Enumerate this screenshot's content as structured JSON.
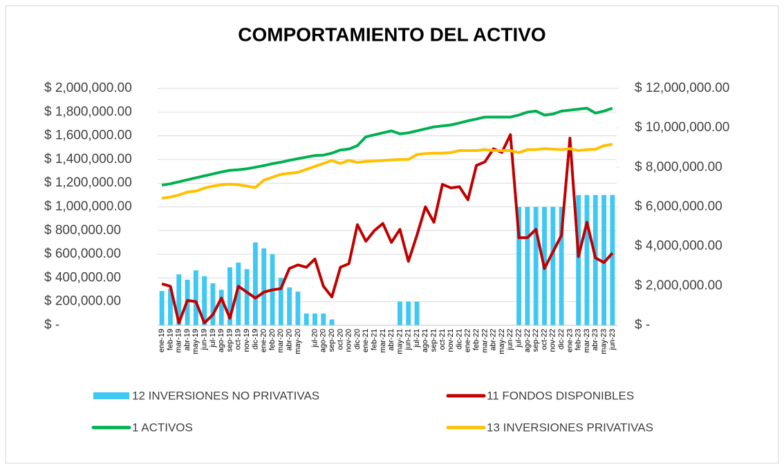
{
  "chart_data": {
    "type": "combo",
    "title": "COMPORTAMIENTO DEL ACTIVO",
    "categories": [
      "ene-19",
      "feb-19",
      "mar-19",
      "abr-19",
      "may-19",
      "jun-19",
      "jul-19",
      "ago-19",
      "sep-19",
      "oct-19",
      "nov-19",
      "dic-19",
      "ene-20",
      "feb-20",
      "mar-20",
      "abr-20",
      "may-20",
      null,
      "jul-20",
      "ago-20",
      "sep-20",
      "oct-20",
      "nov-20",
      "dic-20",
      "ene-21",
      "feb-21",
      "mar-21",
      "abr-21",
      "may-21",
      "jun-21",
      "jul-21",
      "ago-21",
      "sep-21",
      "oct-21",
      "nov-21",
      "dic-21",
      "ene-22",
      "feb-22",
      "mar-22",
      "abr-22",
      "may-22",
      "jun-22",
      "jul-22",
      "ago-22",
      "sep-22",
      "oct-22",
      "nov-22",
      "dic-22",
      "ene-23",
      "feb-23",
      "mar-23",
      "abr-23",
      "may-23",
      "jun-23"
    ],
    "series": [
      {
        "name": "12 INVERSIONES NO PRIVATIVAS",
        "kind": "bar",
        "axis": "y",
        "color": "#3fc8f4",
        "values": [
          290000,
          310000,
          430000,
          385000,
          465000,
          415000,
          355000,
          300000,
          490000,
          530000,
          475000,
          700000,
          650000,
          600000,
          400000,
          320000,
          285000,
          100000,
          100000,
          100000,
          50000,
          0,
          0,
          0,
          0,
          0,
          0,
          0,
          200000,
          200000,
          200000,
          0,
          0,
          0,
          0,
          0,
          0,
          0,
          0,
          0,
          0,
          0,
          1000000,
          1000000,
          1000000,
          1000000,
          1000000,
          1000000,
          0,
          1100000,
          1100000,
          1100000,
          1100000,
          1100000
        ]
      },
      {
        "name": "11 FONDOS DISPONIBLES",
        "kind": "line",
        "axis": "y",
        "color": "#c00000",
        "values": [
          350000,
          330000,
          20000,
          210000,
          200000,
          20000,
          90000,
          230000,
          60000,
          330000,
          280000,
          230000,
          280000,
          300000,
          310000,
          480000,
          510000,
          490000,
          560000,
          330000,
          240000,
          490000,
          520000,
          850000,
          710000,
          800000,
          860000,
          700000,
          810000,
          540000,
          760000,
          1000000,
          870000,
          1190000,
          1160000,
          1170000,
          1060000,
          1350000,
          1380000,
          1490000,
          1460000,
          1610000,
          740000,
          740000,
          810000,
          480000,
          620000,
          760000,
          1580000,
          580000,
          870000,
          570000,
          530000,
          610000
        ]
      },
      {
        "name": "1 ACTIVOS",
        "kind": "line",
        "axis": "y2",
        "color": "#00b050",
        "values": [
          7100000,
          7170000,
          7270000,
          7370000,
          7470000,
          7570000,
          7670000,
          7770000,
          7850000,
          7880000,
          7930000,
          8010000,
          8090000,
          8190000,
          8260000,
          8360000,
          8440000,
          8520000,
          8600000,
          8620000,
          8720000,
          8880000,
          8930000,
          9100000,
          9550000,
          9650000,
          9750000,
          9850000,
          9700000,
          9750000,
          9850000,
          9950000,
          10050000,
          10100000,
          10150000,
          10250000,
          10360000,
          10450000,
          10550000,
          10550000,
          10550000,
          10550000,
          10650000,
          10800000,
          10850000,
          10650000,
          10700000,
          10850000,
          10900000,
          10950000,
          11000000,
          10750000,
          10850000,
          11000000
        ]
      },
      {
        "name": "13 INVERSIONES PRIVATIVAS",
        "kind": "line",
        "axis": "y2",
        "color": "#ffc000",
        "values": [
          6440000,
          6500000,
          6600000,
          6750000,
          6800000,
          6950000,
          7050000,
          7120000,
          7150000,
          7120000,
          7050000,
          6980000,
          7350000,
          7500000,
          7650000,
          7700000,
          7750000,
          7900000,
          8050000,
          8200000,
          8350000,
          8200000,
          8350000,
          8250000,
          8300000,
          8320000,
          8350000,
          8380000,
          8400000,
          8400000,
          8650000,
          8700000,
          8720000,
          8720000,
          8750000,
          8850000,
          8850000,
          8850000,
          8900000,
          8850000,
          8850000,
          8850000,
          8750000,
          8900000,
          8900000,
          8950000,
          8920000,
          8900000,
          8950000,
          8850000,
          8900000,
          8920000,
          9100000,
          9170000
        ]
      }
    ],
    "ylim": [
      0,
      2000000
    ],
    "yticks": [
      {
        "value": 0,
        "label": "$ -"
      },
      {
        "value": 200000,
        "label": "$ 200,000.00"
      },
      {
        "value": 400000,
        "label": "$ 400,000.00"
      },
      {
        "value": 600000,
        "label": "$ 600,000.00"
      },
      {
        "value": 800000,
        "label": "$ 800,000.00"
      },
      {
        "value": 1000000,
        "label": "$ 1,000,000.00"
      },
      {
        "value": 1200000,
        "label": "$ 1,200,000.00"
      },
      {
        "value": 1400000,
        "label": "$ 1,400,000.00"
      },
      {
        "value": 1600000,
        "label": "$ 1,600,000.00"
      },
      {
        "value": 1800000,
        "label": "$ 1,800,000.00"
      },
      {
        "value": 2000000,
        "label": "$ 2,000,000.00"
      }
    ],
    "y2lim": [
      0,
      12000000
    ],
    "y2ticks": [
      {
        "value": 0,
        "label": "$ -"
      },
      {
        "value": 2000000,
        "label": "$ 2,000,000.00"
      },
      {
        "value": 4000000,
        "label": "$ 4,000,000.00"
      },
      {
        "value": 6000000,
        "label": "$ 6,000,000.00"
      },
      {
        "value": 8000000,
        "label": "$ 8,000,000.00"
      },
      {
        "value": 10000000,
        "label": "$ 10,000,000.00"
      },
      {
        "value": 12000000,
        "label": "$ 12,000,000.00"
      }
    ],
    "grid": true
  }
}
